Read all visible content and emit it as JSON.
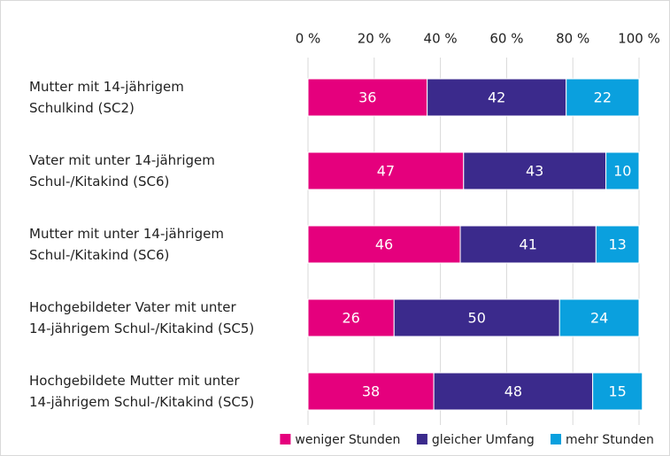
{
  "chart_data": {
    "type": "stacked-barh",
    "categories": [
      "Mutter mit 14-jährigem\nSchulkind (SC2)",
      "Vater mit unter 14-jährigem\nSchul-/Kitakind (SC6)",
      "Mutter mit unter 14-jährigem\nSchul-/Kitakind (SC6)",
      "Hochgebildeter Vater mit unter\n14-jährigem Schul-/Kitakind (SC5)",
      "Hochgebildete Mutter mit unter\n14-jährigem Schul-/Kitakind (SC5)"
    ],
    "series": [
      {
        "name": "weniger Stunden",
        "color": "#e5007d",
        "values": [
          36,
          47,
          46,
          26,
          38
        ]
      },
      {
        "name": "gleicher Umfang",
        "color": "#3b2a8c",
        "values": [
          42,
          43,
          41,
          50,
          48
        ]
      },
      {
        "name": "mehr Stunden",
        "color": "#0aa0de",
        "values": [
          22,
          10,
          13,
          24,
          15
        ]
      }
    ],
    "xlim": [
      0,
      100
    ],
    "xticks": [
      {
        "value": 0,
        "label": "0 %"
      },
      {
        "value": 20,
        "label": "20 %"
      },
      {
        "value": 40,
        "label": "40 %"
      },
      {
        "value": 60,
        "label": "60 %"
      },
      {
        "value": 80,
        "label": "80 %"
      },
      {
        "value": 100,
        "label": "100 %"
      }
    ],
    "grid": true,
    "legend": "bottom"
  }
}
